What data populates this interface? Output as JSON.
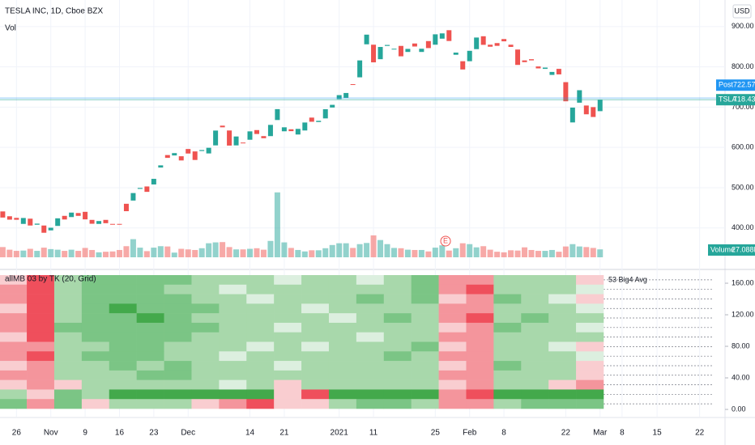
{
  "chart_data": {
    "type": "candlestick",
    "title": "TESLA INC, 1D, Cboe BZX",
    "currency": "USD",
    "volume_label": "Vol",
    "xlim": [
      -0.4,
      105.2
    ],
    "xticks": [
      {
        "value": 2,
        "label": "26"
      },
      {
        "value": 7,
        "label": "Nov"
      },
      {
        "value": 12,
        "label": "9"
      },
      {
        "value": 17,
        "label": "16"
      },
      {
        "value": 22,
        "label": "23"
      },
      {
        "value": 27,
        "label": "Dec"
      },
      {
        "value": 36,
        "label": "14"
      },
      {
        "value": 41,
        "label": "21"
      },
      {
        "value": 49,
        "label": "2021"
      },
      {
        "value": 54,
        "label": "11"
      },
      {
        "value": 63,
        "label": "25"
      },
      {
        "value": 68,
        "label": "Feb"
      },
      {
        "value": 73,
        "label": "8"
      },
      {
        "value": 82,
        "label": "22"
      },
      {
        "value": 87,
        "label": "Mar"
      },
      {
        "value": 90.2,
        "label": "8"
      },
      {
        "value": 95.3,
        "label": "15"
      },
      {
        "value": 101.5,
        "label": "22"
      }
    ],
    "ylim": [
      303,
      966
    ],
    "yticks": [
      {
        "value": 400,
        "label": "400.00"
      },
      {
        "value": 500,
        "label": "500.00"
      },
      {
        "value": 600,
        "label": "600.00"
      },
      {
        "value": 700,
        "label": "700.00"
      },
      {
        "value": 800,
        "label": "800.00"
      },
      {
        "value": 900,
        "label": "900.00"
      }
    ],
    "grid": true,
    "up_color": "#26a69a",
    "down_color": "#ef5350",
    "open": [
      441.0,
      429.0,
      425.0,
      410.0,
      423.0,
      408.0,
      406.0,
      394.0,
      405.0,
      430.0,
      427.0,
      437.0,
      440.0,
      420.0,
      410.0,
      420.0,
      410.0,
      410.0,
      460.0,
      468.0,
      497.0,
      503.0,
      508.0,
      550.0,
      581.0,
      580.0,
      578.0,
      596.0,
      590.0,
      591.0,
      585.0,
      605.0,
      654.0,
      642.0,
      605.0,
      612.0,
      619.0,
      643.0,
      628.0,
      628.0,
      668.0,
      640.0,
      645.0,
      632.0,
      642.0,
      674.0,
      663.0,
      672.0,
      699.0,
      720.0,
      723.0,
      757.0,
      774.0,
      856.0,
      855.0,
      819.0,
      852.0,
      843.0,
      852.0,
      837.0,
      858.0,
      837.0,
      864.0,
      855.0,
      870.0,
      891.0,
      830.0,
      814.0,
      814.0,
      844.0,
      876.0,
      855.0,
      859.0,
      869.0,
      855.0,
      843.0,
      816.0,
      819.0,
      801.0,
      795.0,
      780.0,
      795.0,
      762.0,
      662.0,
      711.0,
      704.0,
      700.0,
      690.0
    ],
    "close": [
      425.8,
      420.6,
      420.3,
      424.7,
      406.0,
      410.7,
      388.0,
      400.5,
      423.9,
      421.0,
      438.1,
      430.0,
      421.3,
      410.4,
      417.1,
      411.8,
      408.5,
      408.1,
      441.6,
      486.6,
      499.3,
      489.6,
      521.9,
      555.4,
      574.0,
      585.8,
      567.6,
      584.8,
      568.8,
      593.4,
      599.0,
      641.8,
      649.9,
      604.5,
      627.1,
      610.0,
      639.8,
      633.3,
      622.8,
      655.9,
      695.0,
      649.9,
      640.3,
      646.0,
      661.8,
      663.7,
      666.0,
      694.8,
      705.7,
      729.8,
      735.1,
      756.0,
      816.0,
      880.0,
      811.2,
      849.4,
      854.4,
      845.0,
      826.2,
      844.6,
      850.5,
      845.0,
      846.6,
      880.8,
      883.1,
      864.2,
      835.4,
      793.5,
      839.8,
      872.8,
      854.7,
      850.0,
      852.2,
      863.4,
      849.5,
      804.8,
      811.7,
      816.1,
      796.2,
      798.2,
      787.4,
      781.3,
      714.5,
      698.8,
      742.0,
      682.2,
      675.5,
      718.4
    ],
    "volume": {
      "name": "Volume",
      "ylim": [
        0,
        880
      ],
      "values": [
        35,
        26,
        22,
        23,
        29,
        22,
        33,
        28,
        26,
        22,
        26,
        22,
        32,
        25,
        17,
        19,
        20,
        25,
        38,
        62,
        33,
        21,
        33,
        38,
        37,
        16,
        29,
        27,
        25,
        31,
        48,
        51,
        52,
        35,
        27,
        27,
        29,
        31,
        26,
        56,
        222,
        51,
        32,
        25,
        20,
        24,
        24,
        31,
        42,
        48,
        48,
        32,
        45,
        49,
        75,
        59,
        45,
        32,
        31,
        26,
        25,
        25,
        20,
        33,
        41,
        23,
        31,
        48,
        45,
        34,
        38,
        26,
        19,
        17,
        24,
        23,
        34,
        25,
        22,
        22,
        25,
        19,
        37,
        45,
        37,
        35,
        32,
        27.088
      ],
      "last": {
        "value": 27.088,
        "label": "27.088M"
      }
    },
    "post": {
      "name": "Post",
      "value": 722.57
    },
    "last": {
      "name": "TSLA",
      "value": 718.43
    },
    "earnings_marker": "E",
    "heatmap": {
      "title": "allMB 03 by TK (20, Grid)",
      "ylim": [
        -9.2,
        174.4
      ],
      "yticks": [
        {
          "value": 0,
          "label": "0.00"
        },
        {
          "value": 40,
          "label": "40.00"
        },
        {
          "value": 80,
          "label": "80.00"
        },
        {
          "value": 120,
          "label": "120.00"
        },
        {
          "value": 160,
          "label": "160.00"
        }
      ],
      "colors": [
        "#ef4f5c",
        "#f4959c",
        "#f9cdd0",
        "#dcefdf",
        "#a8d8ab",
        "#7bc585",
        "#43a94b"
      ],
      "row_labels": [
        "53 Big4 Avg"
      ],
      "rows": [
        [
          -1,
          -3,
          1,
          2,
          2,
          2,
          2,
          1,
          1,
          1,
          0,
          1,
          1,
          0,
          1,
          2,
          -2,
          -2,
          1,
          1,
          1,
          -1
        ],
        [
          -2,
          -3,
          1,
          2,
          2,
          2,
          1,
          1,
          0,
          1,
          1,
          1,
          1,
          1,
          1,
          2,
          -2,
          -3,
          1,
          1,
          1,
          0
        ],
        [
          -2,
          -3,
          1,
          2,
          2,
          2,
          2,
          1,
          1,
          0,
          1,
          1,
          1,
          2,
          1,
          2,
          -1,
          -2,
          2,
          1,
          0,
          -1
        ],
        [
          -1,
          -3,
          1,
          2,
          3,
          2,
          2,
          2,
          1,
          1,
          1,
          0,
          1,
          1,
          1,
          1,
          -2,
          -2,
          1,
          1,
          1,
          0
        ],
        [
          -2,
          -3,
          1,
          2,
          2,
          3,
          2,
          1,
          1,
          1,
          1,
          1,
          0,
          1,
          2,
          1,
          -2,
          -3,
          1,
          2,
          1,
          1
        ],
        [
          -2,
          -3,
          2,
          2,
          2,
          2,
          2,
          2,
          1,
          1,
          0,
          1,
          1,
          1,
          1,
          1,
          -1,
          -2,
          2,
          1,
          1,
          0
        ],
        [
          -1,
          -3,
          1,
          2,
          2,
          2,
          2,
          1,
          1,
          1,
          1,
          1,
          1,
          0,
          1,
          1,
          -2,
          -2,
          1,
          1,
          1,
          1
        ],
        [
          -2,
          -2,
          1,
          1,
          2,
          2,
          1,
          1,
          1,
          0,
          1,
          0,
          1,
          1,
          1,
          2,
          -1,
          -2,
          1,
          1,
          0,
          -1
        ],
        [
          -2,
          -3,
          1,
          2,
          2,
          2,
          1,
          1,
          0,
          1,
          1,
          1,
          1,
          1,
          2,
          1,
          -2,
          -2,
          1,
          1,
          1,
          0
        ],
        [
          -1,
          -2,
          1,
          1,
          2,
          1,
          2,
          1,
          1,
          1,
          0,
          1,
          1,
          1,
          1,
          1,
          -1,
          -2,
          2,
          1,
          1,
          -1
        ],
        [
          -2,
          -2,
          1,
          1,
          1,
          2,
          2,
          1,
          1,
          1,
          1,
          1,
          1,
          1,
          1,
          1,
          -2,
          -2,
          1,
          1,
          1,
          -1
        ],
        [
          -1,
          -2,
          -1,
          1,
          1,
          1,
          1,
          1,
          0,
          1,
          -1,
          1,
          1,
          1,
          1,
          1,
          -1,
          -2,
          1,
          1,
          -1,
          -2
        ],
        [
          1,
          -1,
          2,
          1,
          3,
          3,
          3,
          3,
          3,
          3,
          -1,
          -3,
          3,
          3,
          3,
          3,
          -2,
          -3,
          3,
          3,
          3,
          3
        ],
        [
          2,
          -2,
          2,
          -1,
          1,
          1,
          1,
          -1,
          -2,
          -3,
          -1,
          -1,
          1,
          2,
          2,
          1,
          -2,
          -2,
          1,
          2,
          2,
          2
        ]
      ]
    }
  }
}
